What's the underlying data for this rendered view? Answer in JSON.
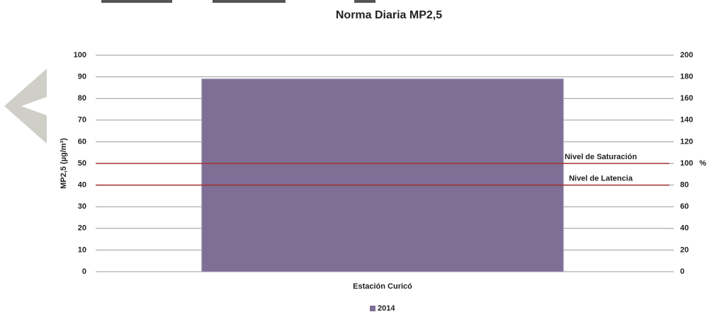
{
  "chart_data": {
    "type": "bar",
    "title": "Norma Diaria MP2,5",
    "categories": [
      "Estación Curicó"
    ],
    "series": [
      {
        "name": "2014",
        "color": "#7f6f96",
        "values": [
          89
        ]
      }
    ],
    "ylabel": "MP2,5 (µg/m³)",
    "y2label": "%",
    "ylim": [
      0,
      100
    ],
    "yticks": [
      0,
      10,
      20,
      30,
      40,
      50,
      60,
      70,
      80,
      90,
      100
    ],
    "y2lim": [
      0,
      200
    ],
    "y2ticks": [
      0,
      20,
      40,
      60,
      80,
      100,
      120,
      140,
      160,
      180,
      200
    ],
    "grid": true,
    "reference_lines": [
      {
        "value": 50,
        "label": "Nivel de Saturación",
        "color": "#a03030"
      },
      {
        "value": 40,
        "label": "Nivel de Latencia",
        "color": "#a03030"
      }
    ],
    "legend": "bottom"
  }
}
